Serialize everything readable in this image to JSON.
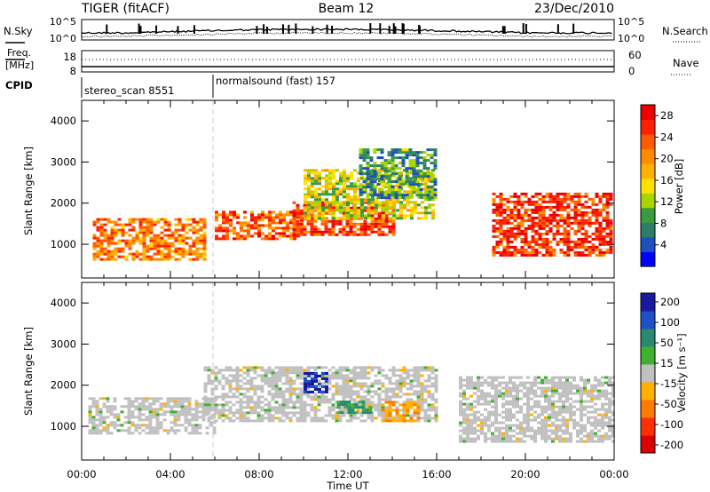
{
  "header": {
    "radar": "TIGER (fitACF)",
    "beam": "Beam 12",
    "date": "23/Dec/2010"
  },
  "top_panels": {
    "nsky_label": "N.Sky",
    "nsearch_label": "N.Search",
    "nsky_ticks": [
      "10^5",
      "10^0"
    ],
    "nsearch_ticks": [
      "10^5",
      "10^0"
    ],
    "freq_label_1": "Freq.",
    "freq_label_2": "[MHz]",
    "freq_ticks": [
      "18",
      "8"
    ],
    "nave_label": "Nave",
    "nave_ticks": [
      "60",
      "0"
    ],
    "cpid_label": "CPID",
    "cpid_segments": [
      {
        "name": "stereo_scan",
        "id": "8551",
        "start_hour": 0,
        "end_hour": 6
      },
      {
        "name": "normalsound (fast)",
        "id": "157",
        "start_hour": 6,
        "end_hour": 24
      }
    ]
  },
  "time_axis": {
    "ticks": [
      "00:00",
      "04:00",
      "08:00",
      "12:00",
      "16:00",
      "20:00",
      "00:00"
    ],
    "label": "Time UT"
  },
  "power_panel": {
    "ylabel": "Slant Range [km]",
    "yticks": [
      "1000",
      "2000",
      "3000",
      "4000"
    ],
    "colorbar_label": "Power [dB]",
    "colorbar_ticks": [
      "4",
      "8",
      "12",
      "16",
      "20",
      "24",
      "28"
    ],
    "colors": [
      "#0000ff",
      "#1e4fbf",
      "#2e7d6a",
      "#3a9a40",
      "#a8d400",
      "#ffe000",
      "#ffb000",
      "#ff8c00",
      "#ff5a00",
      "#ff2000",
      "#ee0000"
    ]
  },
  "velocity_panel": {
    "ylabel": "Slant Range [km]",
    "yticks": [
      "1000",
      "2000",
      "3000",
      "4000"
    ],
    "colorbar_label": "Velocity [m s⁻¹]",
    "colorbar_ticks": [
      "200",
      "100",
      "50",
      "15",
      "-15",
      "-50",
      "-100",
      "-200"
    ],
    "colors": [
      "#1a1aa0",
      "#1e50c8",
      "#2a8a70",
      "#40b030",
      "#c0c0c0",
      "#ffb000",
      "#ff7a00",
      "#ff3000",
      "#dd0000"
    ]
  },
  "chart_data": [
    {
      "type": "line",
      "title": "",
      "series": [
        {
          "name": "N.Sky"
        },
        {
          "name": "N.Search"
        }
      ],
      "x": [
        0,
        24
      ],
      "ylim": [
        "10^0",
        "10^5"
      ],
      "y_scale": "log"
    },
    {
      "type": "line",
      "series": [
        {
          "name": "Freq."
        },
        {
          "name": "Nave"
        }
      ],
      "x": [
        0,
        24
      ],
      "ylim_left": [
        8,
        18
      ],
      "ylim_right": [
        0,
        60
      ]
    },
    {
      "type": "heatmap",
      "name": "Power",
      "xlabel": "Time UT",
      "ylabel": "Slant Range [km]",
      "xlim": [
        0,
        24
      ],
      "ylim": [
        180,
        4500
      ],
      "zlabel": "Power [dB]",
      "zlim": [
        0,
        30
      ],
      "bands": [
        {
          "t": [
            0.5,
            5.5
          ],
          "r": [
            600,
            1600
          ],
          "z": 22
        },
        {
          "t": [
            6,
            10
          ],
          "r": [
            1100,
            1800
          ],
          "z": 24
        },
        {
          "t": [
            9.5,
            14
          ],
          "r": [
            1200,
            2000
          ],
          "z": 26
        },
        {
          "t": [
            10,
            15.8
          ],
          "r": [
            1600,
            2800
          ],
          "z": 14
        },
        {
          "t": [
            12.5,
            16
          ],
          "r": [
            2100,
            3300
          ],
          "z": 8
        },
        {
          "t": [
            18.5,
            23.9
          ],
          "r": [
            700,
            2200
          ],
          "z": 27
        }
      ]
    },
    {
      "type": "heatmap",
      "name": "Velocity",
      "xlabel": "Time UT",
      "ylabel": "Slant Range [km]",
      "xlim": [
        0,
        24
      ],
      "ylim": [
        180,
        4500
      ],
      "zlabel": "Velocity [m s⁻¹]",
      "zlim": [
        -200,
        200
      ],
      "bands": [
        {
          "t": [
            0.3,
            6
          ],
          "r": [
            800,
            1700
          ],
          "v": 0
        },
        {
          "t": [
            5.5,
            16
          ],
          "r": [
            1100,
            2400
          ],
          "v": 0
        },
        {
          "t": [
            10,
            11
          ],
          "r": [
            1800,
            2300
          ],
          "v": 220
        },
        {
          "t": [
            11.5,
            13
          ],
          "r": [
            1300,
            1600
          ],
          "v": 80
        },
        {
          "t": [
            13.5,
            15.2
          ],
          "r": [
            1100,
            1600
          ],
          "v": -60
        },
        {
          "t": [
            17,
            23.9
          ],
          "r": [
            600,
            2200
          ],
          "v": 0
        }
      ]
    }
  ]
}
